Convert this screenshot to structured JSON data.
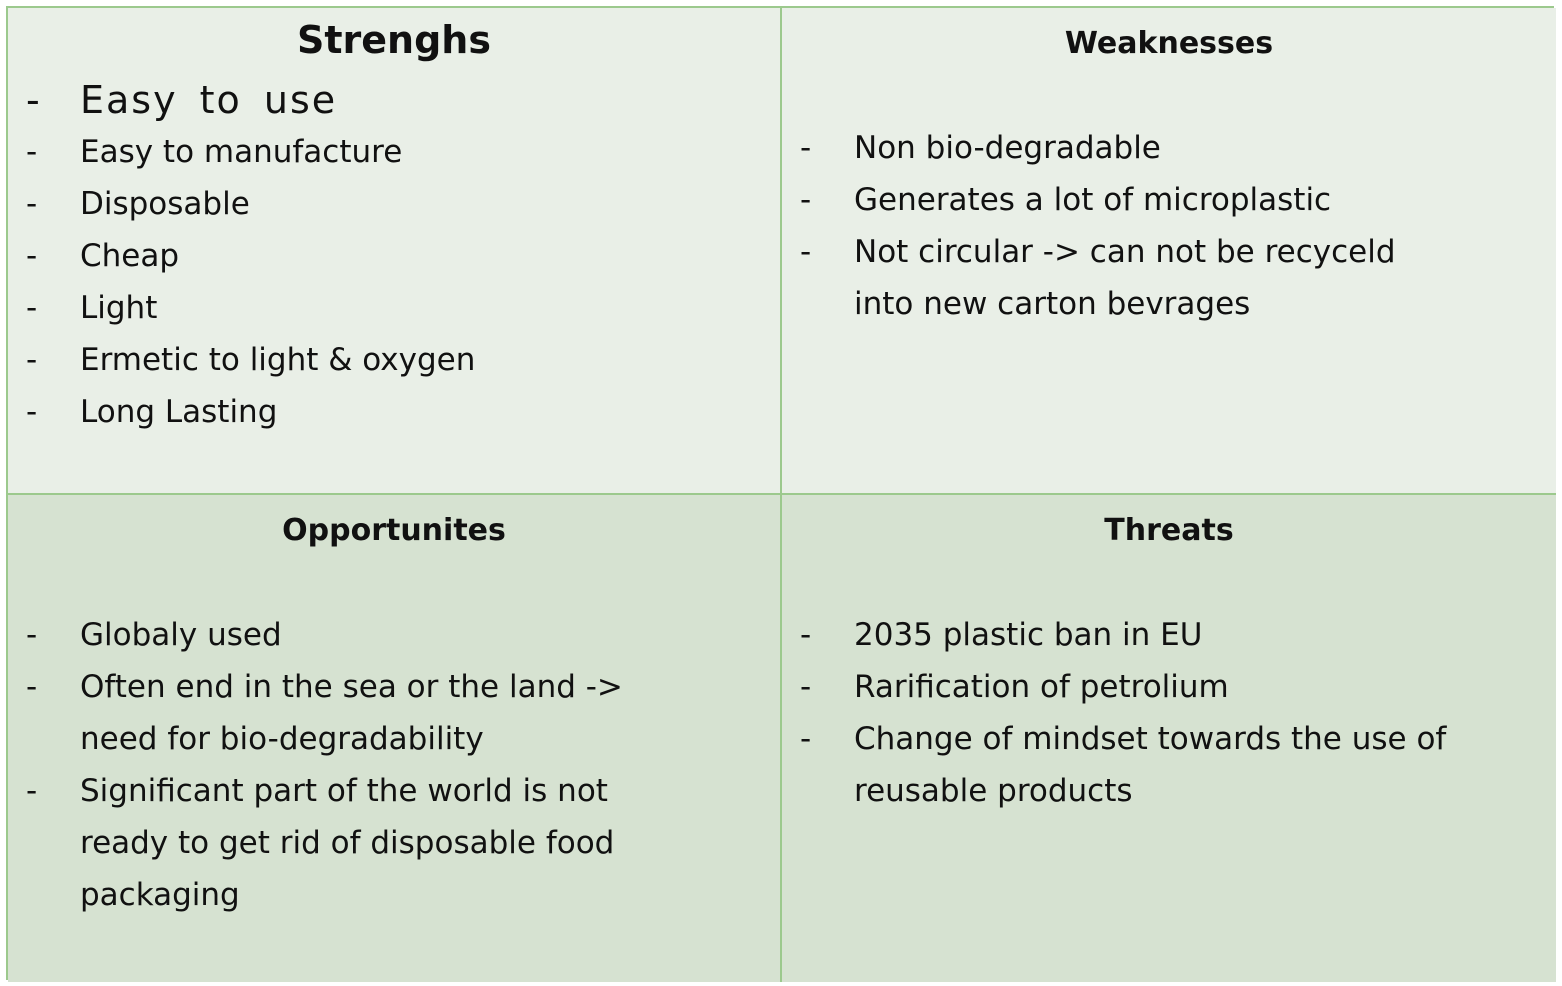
{
  "strengths": {
    "title": "Strenghs",
    "items": [
      "Easy to use",
      "Easy to manufacture",
      "Disposable",
      "Cheap",
      "Light",
      "Ermetic to light & oxygen",
      "Long Lasting"
    ]
  },
  "weaknesses": {
    "title": "Weaknesses",
    "items": [
      "Non bio-degradable",
      "Generates a lot of microplastic",
      "Not circular -> can not be recyceld",
      "into new carton bevrages"
    ]
  },
  "opportunities": {
    "title": "Opportunites",
    "items": [
      "Globaly used",
      "Often end in the sea or the land ->",
      "need for bio-degradability",
      "Significant part of the world is not",
      "ready to get rid of disposable food",
      "packaging"
    ]
  },
  "threats": {
    "title": "Threats",
    "items": [
      "2035 plastic ban in EU",
      "Rarification of petrolium",
      "Change of mindset towards the use of",
      "reusable products"
    ]
  },
  "bullet": "-",
  "colors": {
    "top_cells": "#e9efe7",
    "bottom_cells": "#d6e2d1",
    "border": "#9cc98d"
  }
}
